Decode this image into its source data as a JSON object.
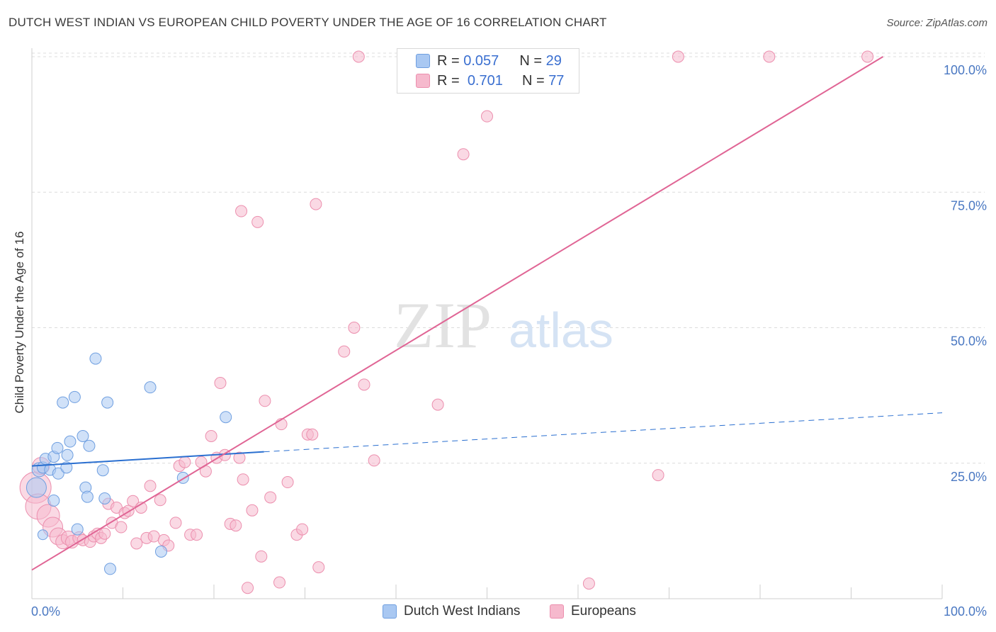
{
  "title": "DUTCH WEST INDIAN VS EUROPEAN CHILD POVERTY UNDER THE AGE OF 16 CORRELATION CHART",
  "source": "Source: ZipAtlas.com",
  "watermark": {
    "zip": "ZIP",
    "atlas": "atlas"
  },
  "legend_top": {
    "rows": [
      {
        "r_label": "R =",
        "r_value": "0.057",
        "n_label": "N =",
        "n_value": "29"
      },
      {
        "r_label": "R =",
        "r_value": "0.701",
        "n_label": "N =",
        "n_value": "77"
      }
    ]
  },
  "legend_bottom": {
    "items": [
      "Dutch West Indians",
      "Europeans"
    ]
  },
  "colors": {
    "blue_fill": "#a9c8f2",
    "blue_stroke": "#6f9fe0",
    "blue_line": "#2a6fd0",
    "pink_fill": "#f6b9cd",
    "pink_stroke": "#ec8fae",
    "pink_line": "#e06595",
    "grid": "#dcdcdc",
    "tick_text": "#4a78c2"
  },
  "chart_data": {
    "type": "scatter",
    "title": "DUTCH WEST INDIAN VS EUROPEAN CHILD POVERTY UNDER THE AGE OF 16 CORRELATION CHART",
    "ylabel": "Child Poverty Under the Age of 16",
    "xlabel": "",
    "xlim": [
      0,
      100
    ],
    "ylim": [
      0,
      100
    ],
    "x_tick_labels": [
      "0.0%",
      "100.0%"
    ],
    "y_tick_labels": [
      "25.0%",
      "50.0%",
      "75.0%",
      "100.0%"
    ],
    "y_ticks": [
      25,
      50,
      75,
      100
    ],
    "grid": true,
    "legend_position": "top-center",
    "series": [
      {
        "name": "Dutch West Indians",
        "color": "blue",
        "trend": {
          "x": [
            0,
            25.5
          ],
          "y": [
            24.5,
            27.1
          ],
          "dashed_to": [
            100,
            34.3
          ]
        },
        "points": [
          [
            0.5,
            20.5,
            14
          ],
          [
            0.8,
            23.8,
            10
          ],
          [
            1.2,
            24.2,
            8
          ],
          [
            1.5,
            25.8,
            8
          ],
          [
            2.0,
            23.8,
            8
          ],
          [
            2.4,
            26.2,
            8
          ],
          [
            2.4,
            18.1,
            8
          ],
          [
            2.8,
            27.8,
            8
          ],
          [
            2.9,
            23.1,
            8
          ],
          [
            3.4,
            36.2,
            8
          ],
          [
            3.8,
            24.2,
            8
          ],
          [
            3.9,
            26.5,
            8
          ],
          [
            4.2,
            29.0,
            8
          ],
          [
            4.7,
            37.2,
            8
          ],
          [
            5.0,
            12.8,
            8
          ],
          [
            5.6,
            30.0,
            8
          ],
          [
            5.9,
            20.5,
            8
          ],
          [
            6.1,
            18.8,
            8
          ],
          [
            6.3,
            28.2,
            8
          ],
          [
            7.0,
            44.3,
            8
          ],
          [
            7.8,
            23.7,
            8
          ],
          [
            8.0,
            18.5,
            8
          ],
          [
            8.3,
            36.2,
            8
          ],
          [
            8.6,
            5.5,
            8
          ],
          [
            13.0,
            39.0,
            8
          ],
          [
            14.2,
            8.7,
            8
          ],
          [
            16.6,
            22.3,
            8
          ],
          [
            21.3,
            33.5,
            8
          ],
          [
            1.2,
            11.8,
            7
          ]
        ]
      },
      {
        "name": "Europeans",
        "color": "pink",
        "trend": {
          "x": [
            0,
            93.5
          ],
          "y": [
            5.3,
            100
          ]
        },
        "points": [
          [
            0.4,
            20.5,
            22
          ],
          [
            0.7,
            17.0,
            18
          ],
          [
            1.0,
            24.5,
            12
          ],
          [
            1.8,
            15.3,
            16
          ],
          [
            2.3,
            13.2,
            14
          ],
          [
            2.9,
            11.5,
            12
          ],
          [
            3.4,
            10.5,
            10
          ],
          [
            4.0,
            11.2,
            10
          ],
          [
            4.4,
            10.5,
            9
          ],
          [
            5.2,
            11.2,
            9
          ],
          [
            5.6,
            10.8,
            8
          ],
          [
            6.4,
            10.5,
            8
          ],
          [
            6.8,
            11.5,
            8
          ],
          [
            7.2,
            12.0,
            8
          ],
          [
            7.6,
            11.2,
            8
          ],
          [
            8.0,
            12.0,
            8
          ],
          [
            8.4,
            17.5,
            8
          ],
          [
            8.8,
            14.0,
            8
          ],
          [
            9.3,
            16.8,
            8
          ],
          [
            9.8,
            13.2,
            8
          ],
          [
            10.2,
            15.8,
            8
          ],
          [
            10.6,
            16.2,
            8
          ],
          [
            11.1,
            18.0,
            8
          ],
          [
            11.5,
            10.2,
            8
          ],
          [
            12.0,
            16.8,
            8
          ],
          [
            12.6,
            11.2,
            8
          ],
          [
            13.0,
            20.8,
            8
          ],
          [
            13.4,
            11.5,
            8
          ],
          [
            14.1,
            18.2,
            8
          ],
          [
            14.5,
            10.8,
            8
          ],
          [
            15.0,
            9.8,
            8
          ],
          [
            15.8,
            14.0,
            8
          ],
          [
            16.2,
            24.5,
            8
          ],
          [
            16.8,
            25.2,
            8
          ],
          [
            17.4,
            11.8,
            8
          ],
          [
            18.1,
            11.8,
            8
          ],
          [
            18.6,
            25.2,
            8
          ],
          [
            19.1,
            23.5,
            8
          ],
          [
            19.7,
            30.0,
            8
          ],
          [
            20.3,
            26.0,
            8
          ],
          [
            20.7,
            39.8,
            8
          ],
          [
            21.2,
            26.5,
            8
          ],
          [
            21.8,
            13.8,
            8
          ],
          [
            22.4,
            13.5,
            8
          ],
          [
            22.8,
            26.0,
            8
          ],
          [
            23.0,
            71.5,
            8
          ],
          [
            23.2,
            22.0,
            8
          ],
          [
            23.7,
            2.0,
            8
          ],
          [
            24.2,
            16.3,
            8
          ],
          [
            24.8,
            69.5,
            8
          ],
          [
            25.2,
            7.8,
            8
          ],
          [
            25.6,
            36.5,
            8
          ],
          [
            26.2,
            18.7,
            8
          ],
          [
            27.2,
            3.0,
            8
          ],
          [
            27.4,
            32.2,
            8
          ],
          [
            28.1,
            21.5,
            8
          ],
          [
            29.1,
            11.8,
            8
          ],
          [
            29.7,
            12.8,
            8
          ],
          [
            30.3,
            30.3,
            8
          ],
          [
            30.8,
            30.3,
            8
          ],
          [
            31.2,
            72.8,
            8
          ],
          [
            31.5,
            5.8,
            8
          ],
          [
            34.3,
            45.6,
            8
          ],
          [
            35.4,
            50.0,
            8
          ],
          [
            36.5,
            39.5,
            8
          ],
          [
            37.6,
            25.5,
            8
          ],
          [
            35.9,
            100.0,
            8
          ],
          [
            44.6,
            35.8,
            8
          ],
          [
            47.4,
            82.0,
            8
          ],
          [
            50.0,
            89.0,
            8
          ],
          [
            54.2,
            100.0,
            8
          ],
          [
            61.2,
            2.8,
            8
          ],
          [
            68.8,
            22.8,
            8
          ],
          [
            71.0,
            100.0,
            8
          ],
          [
            81.0,
            100.0,
            8
          ],
          [
            91.8,
            100.0,
            8
          ],
          [
            54.7,
            100.0,
            7
          ]
        ]
      }
    ]
  }
}
